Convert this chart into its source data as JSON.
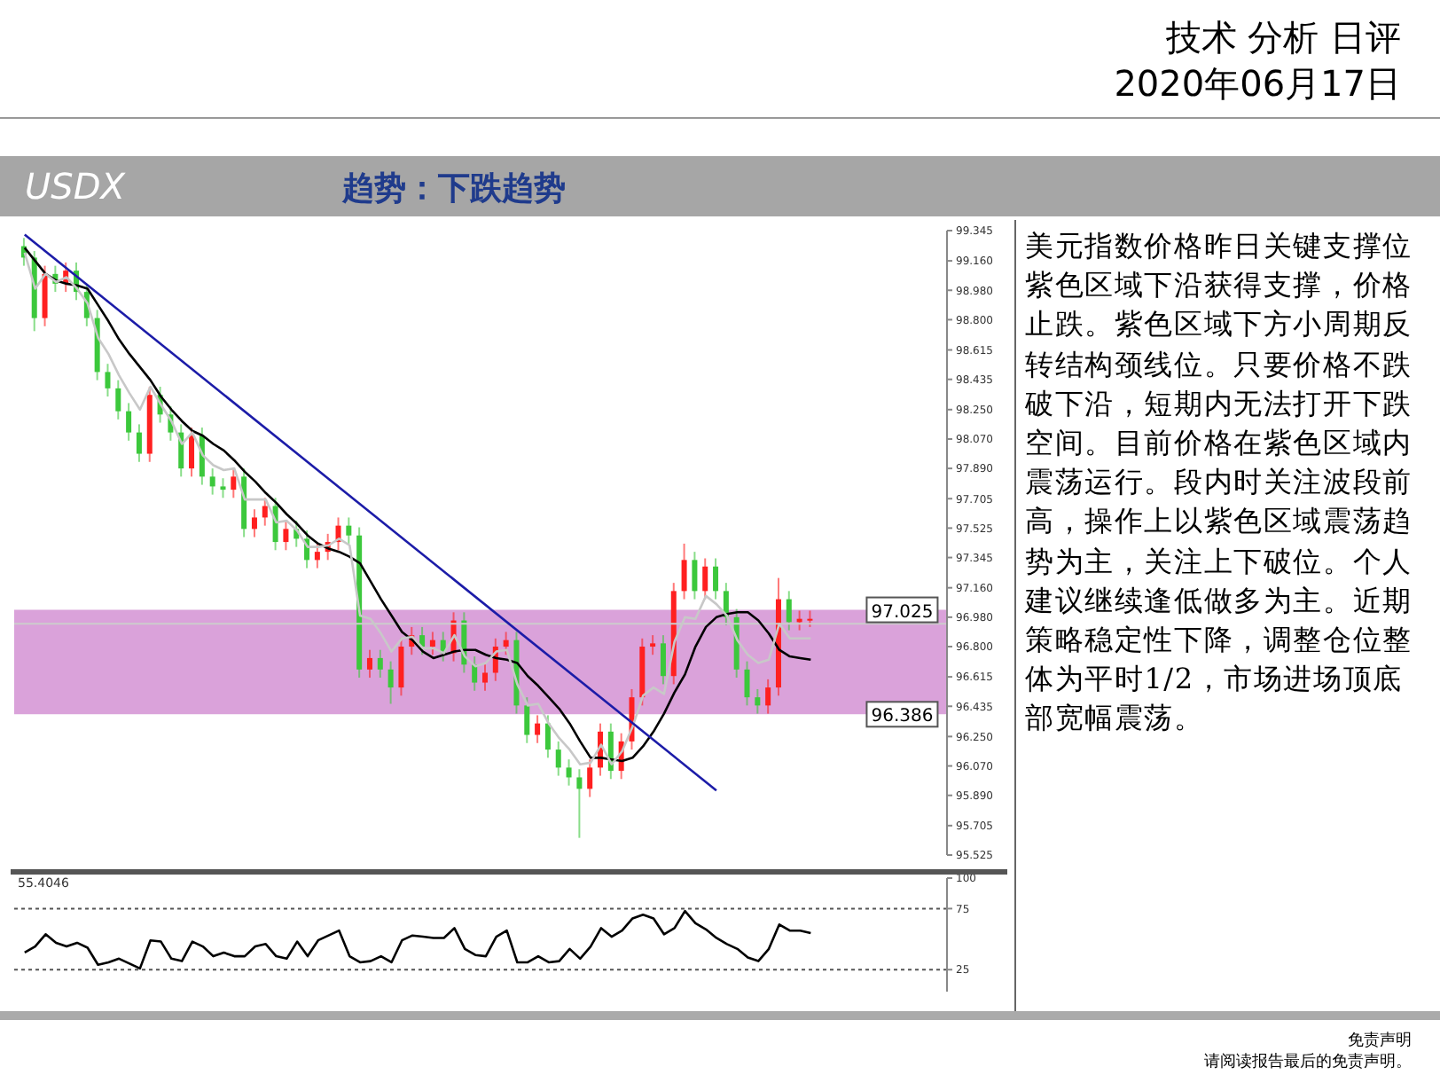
{
  "chart_data": [
    {
      "type": "candlestick",
      "title": "USDX",
      "subtitle": "趋势：下跌趋势",
      "categories": [
        null,
        null,
        null,
        null,
        null,
        null,
        null,
        null,
        null,
        null,
        null,
        null,
        null,
        null,
        null,
        null,
        null,
        null,
        null,
        null,
        null,
        null,
        null,
        null,
        null,
        null,
        null,
        null,
        null,
        null,
        null,
        null,
        null,
        null,
        null,
        null,
        null,
        null,
        null,
        null,
        null,
        null,
        null,
        null,
        null,
        null,
        null,
        null,
        null,
        null,
        null,
        null,
        null,
        null,
        null,
        null,
        null,
        null,
        null,
        null,
        null,
        null,
        null,
        null,
        null,
        null,
        null,
        null,
        null,
        null,
        null,
        null,
        null,
        null,
        null,
        null
      ],
      "ohlc": [
        [
          99.25,
          99.3,
          99.13,
          99.18
        ],
        [
          99.18,
          99.22,
          98.73,
          98.81
        ],
        [
          98.81,
          99.13,
          98.76,
          99.08
        ],
        [
          99.08,
          99.13,
          98.97,
          99.02
        ],
        [
          99.02,
          99.15,
          98.97,
          99.1
        ],
        [
          99.1,
          99.15,
          98.92,
          98.97
        ],
        [
          98.97,
          99.02,
          98.76,
          98.81
        ],
        [
          98.81,
          98.86,
          98.43,
          98.48
        ],
        [
          98.48,
          98.53,
          98.33,
          98.38
        ],
        [
          98.38,
          98.43,
          98.19,
          98.24
        ],
        [
          98.24,
          98.29,
          98.06,
          98.11
        ],
        [
          98.11,
          98.16,
          97.93,
          97.98
        ],
        [
          97.98,
          98.39,
          97.93,
          98.34
        ],
        [
          98.34,
          98.39,
          98.17,
          98.22
        ],
        [
          98.22,
          98.27,
          98.06,
          98.11
        ],
        [
          98.11,
          98.16,
          97.84,
          97.89
        ],
        [
          97.89,
          98.14,
          97.84,
          98.09
        ],
        [
          98.09,
          98.14,
          97.79,
          97.84
        ],
        [
          97.84,
          97.89,
          97.73,
          97.78
        ],
        [
          97.78,
          97.83,
          97.71,
          97.76
        ],
        [
          97.76,
          97.89,
          97.71,
          97.84
        ],
        [
          97.84,
          97.89,
          97.47,
          97.52
        ],
        [
          97.52,
          97.64,
          97.47,
          97.59
        ],
        [
          97.59,
          97.71,
          97.54,
          97.66
        ],
        [
          97.66,
          97.71,
          97.39,
          97.44
        ],
        [
          97.44,
          97.57,
          97.39,
          97.52
        ],
        [
          97.52,
          97.57,
          97.41,
          97.46
        ],
        [
          97.46,
          97.51,
          97.28,
          97.33
        ],
        [
          97.33,
          97.43,
          97.28,
          97.38
        ],
        [
          97.38,
          97.49,
          97.33,
          97.44
        ],
        [
          97.44,
          97.59,
          97.39,
          97.54
        ],
        [
          97.54,
          97.59,
          97.43,
          97.48
        ],
        [
          97.48,
          97.53,
          96.61,
          96.66
        ],
        [
          96.66,
          96.78,
          96.61,
          96.73
        ],
        [
          96.73,
          96.78,
          96.61,
          96.66
        ],
        [
          96.66,
          96.71,
          96.45,
          96.55
        ],
        [
          96.55,
          96.85,
          96.5,
          96.8
        ],
        [
          96.8,
          96.92,
          96.75,
          96.87
        ],
        [
          96.87,
          96.92,
          96.75,
          96.8
        ],
        [
          96.8,
          96.89,
          96.75,
          96.84
        ],
        [
          96.84,
          96.89,
          96.71,
          96.76
        ],
        [
          96.76,
          97.01,
          96.71,
          96.96
        ],
        [
          96.96,
          97.01,
          96.64,
          96.69
        ],
        [
          96.69,
          96.74,
          96.53,
          96.58
        ],
        [
          96.58,
          96.69,
          96.53,
          96.64
        ],
        [
          96.64,
          96.85,
          96.59,
          96.8
        ],
        [
          96.8,
          96.89,
          96.75,
          96.84
        ],
        [
          96.84,
          96.89,
          96.39,
          96.44
        ],
        [
          96.44,
          96.49,
          96.21,
          96.26
        ],
        [
          96.26,
          96.38,
          96.21,
          96.33
        ],
        [
          96.33,
          96.38,
          96.12,
          96.17
        ],
        [
          96.17,
          96.22,
          96.01,
          96.06
        ],
        [
          96.06,
          96.11,
          95.95,
          96.0
        ],
        [
          96.0,
          96.05,
          95.63,
          95.93
        ],
        [
          95.93,
          96.11,
          95.88,
          96.06
        ],
        [
          96.06,
          96.33,
          96.01,
          96.28
        ],
        [
          96.28,
          96.33,
          95.99,
          96.04
        ],
        [
          96.04,
          96.27,
          95.99,
          96.22
        ],
        [
          96.22,
          96.54,
          96.17,
          96.49
        ],
        [
          96.49,
          96.85,
          96.44,
          96.8
        ],
        [
          96.8,
          96.87,
          96.75,
          96.82
        ],
        [
          96.82,
          96.87,
          96.57,
          96.62
        ],
        [
          96.62,
          97.19,
          96.57,
          97.14
        ],
        [
          97.14,
          97.43,
          97.09,
          97.33
        ],
        [
          97.33,
          97.38,
          97.09,
          97.14
        ],
        [
          97.14,
          97.34,
          97.09,
          97.29
        ],
        [
          97.29,
          97.34,
          97.09,
          97.14
        ],
        [
          97.14,
          97.19,
          96.93,
          96.98
        ],
        [
          96.98,
          97.03,
          96.61,
          96.66
        ],
        [
          96.66,
          96.71,
          96.44,
          96.49
        ],
        [
          96.49,
          96.54,
          96.39,
          96.44
        ],
        [
          96.44,
          96.6,
          96.39,
          96.55
        ],
        [
          96.55,
          97.22,
          96.5,
          97.09
        ],
        [
          97.09,
          97.14,
          96.9,
          96.95
        ],
        [
          96.95,
          97.02,
          96.9,
          96.97
        ],
        [
          96.97,
          97.02,
          96.92,
          96.97
        ]
      ],
      "series": [
        {
          "type": "line",
          "color": "#000000",
          "values": [
            99.24,
            99.16,
            99.08,
            99.04,
            99.02,
            99.01,
            98.99,
            98.89,
            98.79,
            98.68,
            98.59,
            98.51,
            98.43,
            98.33,
            98.25,
            98.18,
            98.12,
            98.09,
            98.04,
            98.0,
            97.94,
            97.87,
            97.81,
            97.74,
            97.68,
            97.61,
            97.55,
            97.48,
            97.43,
            97.4,
            97.38,
            97.35,
            97.31,
            97.2,
            97.09,
            96.99,
            96.89,
            96.84,
            96.77,
            96.73,
            96.75,
            96.77,
            96.78,
            96.78,
            96.75,
            96.73,
            96.72,
            96.7,
            96.62,
            96.56,
            96.49,
            96.42,
            96.33,
            96.22,
            96.12,
            96.12,
            96.11,
            96.1,
            96.12,
            96.19,
            96.28,
            96.39,
            96.52,
            96.63,
            96.8,
            96.92,
            96.98,
            97.0,
            97.01,
            97.01,
            96.96,
            96.88,
            96.78,
            96.74,
            96.73,
            96.72
          ]
        },
        {
          "type": "line",
          "color": "#c8c8c8",
          "values": [
            99.21,
            98.99,
            99.08,
            99.03,
            99.06,
            98.99,
            98.9,
            98.69,
            98.59,
            98.46,
            98.35,
            98.25,
            98.39,
            98.28,
            98.18,
            98.04,
            98.11,
            97.97,
            97.91,
            97.88,
            97.89,
            97.7,
            97.7,
            97.7,
            97.56,
            97.57,
            97.51,
            97.41,
            97.41,
            97.42,
            97.46,
            97.42,
            96.99,
            96.97,
            96.88,
            96.77,
            96.85,
            96.86,
            96.79,
            96.79,
            96.76,
            96.87,
            96.74,
            96.68,
            96.7,
            96.77,
            96.78,
            96.57,
            96.44,
            96.45,
            96.33,
            96.24,
            96.17,
            96.08,
            96.09,
            96.2,
            96.08,
            96.16,
            96.31,
            96.5,
            96.55,
            96.51,
            96.83,
            96.98,
            96.97,
            97.11,
            97.06,
            96.99,
            96.84,
            96.75,
            96.7,
            96.72,
            96.94,
            96.85,
            96.85,
            96.85
          ]
        },
        {
          "type": "line",
          "color": "#1c1ca8",
          "values": [
            99.32,
            null,
            null,
            null,
            null,
            null,
            null,
            null,
            null,
            null,
            null,
            null,
            null,
            null,
            null,
            null,
            null,
            null,
            null,
            null,
            null,
            null,
            null,
            null,
            null,
            null,
            null,
            null,
            null,
            null,
            null,
            null,
            null,
            null,
            null,
            null,
            null,
            null,
            null,
            null,
            null,
            null,
            null,
            null,
            null,
            null,
            null,
            null,
            null,
            null,
            null,
            null,
            null,
            null,
            null,
            null,
            null,
            null,
            null,
            null,
            null,
            null,
            null,
            null,
            null,
            null,
            95.92,
            null,
            null,
            null,
            null,
            null,
            null,
            null,
            null,
            null
          ]
        }
      ],
      "ylim": [
        95.525,
        99.345
      ],
      "yticks": [
        {
          "value": 99.345,
          "label": "99.345"
        },
        {
          "value": 99.16,
          "label": "99.160"
        },
        {
          "value": 98.98,
          "label": "98.980"
        },
        {
          "value": 98.8,
          "label": "98.800"
        },
        {
          "value": 98.615,
          "label": "98.615"
        },
        {
          "value": 98.435,
          "label": "98.435"
        },
        {
          "value": 98.25,
          "label": "98.250"
        },
        {
          "value": 98.07,
          "label": "98.070"
        },
        {
          "value": 97.89,
          "label": "97.890"
        },
        {
          "value": 97.705,
          "label": "97.705"
        },
        {
          "value": 97.525,
          "label": "97.525"
        },
        {
          "value": 97.345,
          "label": "97.345"
        },
        {
          "value": 97.16,
          "label": "97.160"
        },
        {
          "value": 96.98,
          "label": "96.980"
        },
        {
          "value": 96.8,
          "label": "96.800"
        },
        {
          "value": 96.615,
          "label": "96.615"
        },
        {
          "value": 96.435,
          "label": "96.435"
        },
        {
          "value": 96.25,
          "label": "96.250"
        },
        {
          "value": 96.07,
          "label": "96.070"
        },
        {
          "value": 95.89,
          "label": "95.890"
        },
        {
          "value": 95.705,
          "label": "95.705"
        },
        {
          "value": 95.525,
          "label": "95.525"
        }
      ],
      "bands": [
        {
          "axis": "y",
          "from": 96.386,
          "to": 97.025,
          "color": "#daa2da"
        }
      ],
      "ref_lines": [
        {
          "axis": "y",
          "value": 96.94,
          "color": "#cccccc"
        }
      ],
      "annotations": [
        "技术 分析 日评",
        "2020年06月17日",
        "美元指数价格昨日关键支撑位紫色区域下沿获得支撑，价格止跌。紫色区域下方小周期反转结构颈线位。只要价格不跌破下沿，短期内无法打开下跌空间。目前价格在紫色区域内震荡运行。段内时关注波段前高，操作上以紫色区域震荡趋势为主，关注上下破位。个人建议继续逢低做多为主。近期策略稳定性下降，调整仓位整体为平时1/2，市场进场顶底部宽幅震荡。",
        "免责声明",
        "请阅读报告最后的免责声明。",
        {
          "text": "97.025",
          "y": 97.025
        },
        {
          "text": "96.386",
          "y": 96.386
        }
      ],
      "tick_labels": "y"
    },
    {
      "type": "line",
      "categories": [
        null,
        null,
        null,
        null,
        null,
        null,
        null,
        null,
        null,
        null,
        null,
        null,
        null,
        null,
        null,
        null,
        null,
        null,
        null,
        null,
        null,
        null,
        null,
        null,
        null,
        null,
        null,
        null,
        null,
        null,
        null,
        null,
        null,
        null,
        null,
        null,
        null,
        null,
        null,
        null,
        null,
        null,
        null,
        null,
        null,
        null,
        null,
        null,
        null,
        null,
        null,
        null,
        null,
        null,
        null,
        null,
        null,
        null,
        null,
        null,
        null,
        null,
        null,
        null,
        null,
        null,
        null,
        null,
        null,
        null,
        null,
        null,
        null,
        null,
        null,
        null
      ],
      "series": [
        {
          "color": "#000000",
          "values": [
            39,
            44,
            54,
            47,
            44,
            47,
            43,
            29,
            31,
            34,
            30,
            26,
            49,
            48,
            34,
            32,
            48,
            44,
            36,
            39,
            36,
            36,
            44,
            46,
            36,
            34,
            48,
            36,
            49,
            53,
            57,
            36,
            31,
            32,
            36,
            31,
            49,
            53,
            52,
            51,
            51,
            59,
            42,
            37,
            36,
            52,
            57,
            31,
            31,
            36,
            31,
            32,
            42,
            34,
            44,
            59,
            52,
            57,
            67,
            70,
            67,
            54,
            59,
            73,
            63,
            58,
            51,
            46,
            42,
            35,
            32,
            42,
            62,
            57,
            57,
            55
          ]
        }
      ],
      "ylim": [
        7,
        100
      ],
      "yticks": [
        25,
        75,
        100
      ],
      "ref_lines": [
        {
          "axis": "y",
          "value": 75,
          "line_style": "dotted",
          "color": "#555555"
        },
        {
          "axis": "y",
          "value": 25,
          "line_style": "dotted",
          "color": "#555555"
        }
      ],
      "annotations": [
        "55.4046"
      ],
      "tick_labels": "y"
    }
  ]
}
